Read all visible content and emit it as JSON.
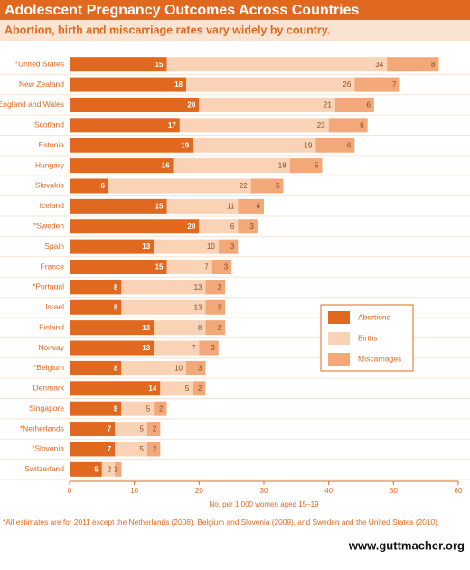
{
  "chart_data": {
    "type": "stacked-bar-horizontal",
    "title": "Adolescent Pregnancy Outcomes Across Countries",
    "subtitle": "Abortion, birth and miscarriage rates vary widely by country.",
    "categories": [
      "*United States",
      "New Zealand",
      "England and Wales",
      "Scotland",
      "Estonia",
      "Hungary",
      "Slovakia",
      "Iceland",
      "*Sweden",
      "Spain",
      "France",
      "*Portugal",
      "Israel",
      "Finland",
      "Norway",
      "*Belgium",
      "Denmark",
      "Singapore",
      "*Netherlands",
      "*Slovenia",
      "Switzerland"
    ],
    "series": [
      {
        "name": "Abortions",
        "color": "#e0681f",
        "values": [
          15,
          18,
          20,
          17,
          19,
          16,
          6,
          15,
          20,
          13,
          15,
          8,
          8,
          13,
          13,
          8,
          14,
          8,
          7,
          7,
          5
        ]
      },
      {
        "name": "Births",
        "color": "#fad3b6",
        "values": [
          34,
          26,
          21,
          23,
          19,
          18,
          22,
          11,
          6,
          10,
          7,
          13,
          13,
          8,
          7,
          10,
          5,
          5,
          5,
          5,
          2
        ]
      },
      {
        "name": "Miscarriages",
        "color": "#f2a878",
        "values": [
          8,
          7,
          6,
          6,
          6,
          5,
          5,
          4,
          3,
          3,
          3,
          3,
          3,
          3,
          3,
          3,
          2,
          2,
          2,
          2,
          1
        ]
      }
    ],
    "xlim": [
      0,
      60
    ],
    "xticks": [
      0,
      10,
      20,
      30,
      40,
      50,
      60
    ],
    "xlabel": "No. per 1,000 women aged 15–19",
    "footnote": "*All estimates are for 2011 except the Netherlands (2008), Belgium and Slovenia (2009), and Sweden and the United States (2010).",
    "source": "www.guttmacher.org"
  }
}
